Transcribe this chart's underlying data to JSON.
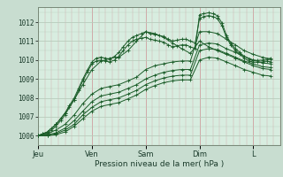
{
  "background_color": "#c8ddd0",
  "plot_bg_color": "#d8ede0",
  "grid_major_color": "#b8ccbc",
  "grid_minor_color": "#ccddcc",
  "grid_vert_color": "#d0a8a8",
  "line_color": "#1a5c28",
  "xlabel": "Pression niveau de la mer( hPa )",
  "xlabels": [
    "Jeu",
    "Ven",
    "Sam",
    "Dim",
    "L"
  ],
  "ylim": [
    1005.5,
    1012.8
  ],
  "yticks": [
    1006,
    1007,
    1008,
    1009,
    1010,
    1011,
    1012
  ],
  "xlim": [
    0,
    4.5
  ],
  "day_ticks": [
    0,
    1,
    2,
    3,
    4
  ],
  "lines": [
    {
      "x": [
        0.0,
        0.08,
        0.17,
        0.25,
        0.33,
        0.42,
        0.5,
        0.58,
        0.67,
        0.75,
        0.83,
        0.92,
        1.0,
        1.08,
        1.17,
        1.25,
        1.33,
        1.42,
        1.5,
        1.58,
        1.67,
        1.75,
        1.83,
        1.92,
        2.0,
        2.08,
        2.17,
        2.25,
        2.33,
        2.42,
        2.5,
        2.58,
        2.67,
        2.75,
        2.83,
        2.92,
        3.0,
        3.08,
        3.17,
        3.25,
        3.33,
        3.42,
        3.5,
        3.58,
        3.67,
        3.75,
        3.83,
        3.92,
        4.0,
        4.08,
        4.17,
        4.25,
        4.33
      ],
      "y": [
        1006.0,
        1006.1,
        1006.2,
        1006.4,
        1006.6,
        1006.9,
        1007.2,
        1007.6,
        1008.0,
        1008.5,
        1009.0,
        1009.5,
        1009.9,
        1010.1,
        1010.15,
        1010.1,
        1010.05,
        1010.2,
        1010.4,
        1010.7,
        1011.0,
        1011.2,
        1011.3,
        1011.4,
        1011.5,
        1011.4,
        1011.35,
        1011.3,
        1011.25,
        1011.1,
        1011.0,
        1011.05,
        1011.1,
        1011.1,
        1011.0,
        1010.9,
        1012.2,
        1012.3,
        1012.35,
        1012.3,
        1012.2,
        1011.8,
        1011.2,
        1010.8,
        1010.5,
        1010.3,
        1010.1,
        1009.95,
        1009.9,
        1009.88,
        1009.9,
        1009.95,
        1009.9
      ]
    },
    {
      "x": [
        0.0,
        0.08,
        0.17,
        0.25,
        0.33,
        0.42,
        0.5,
        0.58,
        0.67,
        0.75,
        0.83,
        0.92,
        1.0,
        1.08,
        1.17,
        1.25,
        1.33,
        1.42,
        1.5,
        1.58,
        1.67,
        1.75,
        1.83,
        1.92,
        2.0,
        2.08,
        2.17,
        2.25,
        2.33,
        2.42,
        2.5,
        2.58,
        2.67,
        2.75,
        2.83,
        2.92,
        3.0,
        3.08,
        3.17,
        3.25,
        3.33,
        3.42,
        3.5,
        3.58,
        3.67,
        3.75,
        3.83,
        3.92,
        4.0,
        4.08,
        4.17,
        4.25,
        4.33
      ],
      "y": [
        1006.0,
        1006.1,
        1006.15,
        1006.3,
        1006.5,
        1006.8,
        1007.1,
        1007.5,
        1007.9,
        1008.4,
        1008.9,
        1009.4,
        1009.8,
        1009.95,
        1010.0,
        1009.95,
        1009.9,
        1010.0,
        1010.2,
        1010.5,
        1010.8,
        1011.0,
        1011.1,
        1011.15,
        1011.2,
        1011.1,
        1011.05,
        1011.0,
        1010.95,
        1010.8,
        1010.7,
        1010.75,
        1010.8,
        1010.8,
        1010.7,
        1010.6,
        1012.4,
        1012.45,
        1012.5,
        1012.45,
        1012.35,
        1011.95,
        1011.3,
        1010.9,
        1010.6,
        1010.4,
        1010.2,
        1010.05,
        1010.0,
        1009.98,
        1010.0,
        1010.05,
        1010.1
      ]
    },
    {
      "x": [
        0.0,
        0.17,
        0.33,
        0.5,
        0.67,
        0.83,
        1.0,
        1.17,
        1.33,
        1.5,
        1.67,
        1.83,
        2.0,
        2.17,
        2.33,
        2.5,
        2.67,
        2.83,
        3.0,
        3.17,
        3.33,
        3.5,
        3.67,
        3.83,
        4.0,
        4.17,
        4.33
      ],
      "y": [
        1006.0,
        1006.1,
        1006.3,
        1006.6,
        1007.1,
        1007.7,
        1008.2,
        1008.5,
        1008.6,
        1008.7,
        1008.9,
        1009.1,
        1009.5,
        1009.7,
        1009.8,
        1009.9,
        1009.95,
        1009.95,
        1011.5,
        1011.5,
        1011.4,
        1011.1,
        1010.8,
        1010.5,
        1010.3,
        1010.15,
        1010.05
      ]
    },
    {
      "x": [
        0.0,
        0.17,
        0.33,
        0.5,
        0.67,
        0.83,
        1.0,
        1.17,
        1.33,
        1.5,
        1.67,
        1.83,
        2.0,
        2.17,
        2.33,
        2.5,
        2.67,
        2.83,
        3.0,
        3.17,
        3.33,
        3.5,
        3.67,
        3.83,
        4.0,
        4.17,
        4.33
      ],
      "y": [
        1006.0,
        1006.05,
        1006.15,
        1006.4,
        1006.8,
        1007.3,
        1007.8,
        1008.1,
        1008.2,
        1008.3,
        1008.5,
        1008.7,
        1009.0,
        1009.2,
        1009.35,
        1009.45,
        1009.5,
        1009.5,
        1010.8,
        1010.9,
        1010.85,
        1010.6,
        1010.4,
        1010.2,
        1010.0,
        1009.85,
        1009.8
      ]
    },
    {
      "x": [
        0.0,
        0.17,
        0.33,
        0.5,
        0.67,
        0.83,
        1.0,
        1.17,
        1.33,
        1.5,
        1.67,
        1.83,
        2.0,
        2.17,
        2.33,
        2.5,
        2.67,
        2.83,
        3.0,
        3.17,
        3.33,
        3.5,
        3.67,
        3.83,
        4.0,
        4.17,
        4.33
      ],
      "y": [
        1006.0,
        1006.0,
        1006.1,
        1006.3,
        1006.6,
        1007.1,
        1007.5,
        1007.8,
        1007.9,
        1008.0,
        1008.2,
        1008.4,
        1008.7,
        1008.9,
        1009.05,
        1009.15,
        1009.2,
        1009.2,
        1010.5,
        1010.6,
        1010.55,
        1010.35,
        1010.15,
        1009.95,
        1009.8,
        1009.65,
        1009.6
      ]
    },
    {
      "x": [
        0.0,
        0.17,
        0.33,
        0.5,
        0.67,
        0.83,
        1.0,
        1.17,
        1.33,
        1.5,
        1.67,
        1.83,
        2.0,
        2.17,
        2.33,
        2.5,
        2.67,
        2.83,
        3.0,
        3.17,
        3.33,
        3.5,
        3.67,
        3.83,
        4.0,
        4.17,
        4.33
      ],
      "y": [
        1006.0,
        1006.0,
        1006.05,
        1006.2,
        1006.5,
        1006.9,
        1007.3,
        1007.55,
        1007.65,
        1007.75,
        1007.95,
        1008.15,
        1008.45,
        1008.65,
        1008.8,
        1008.9,
        1008.95,
        1008.95,
        1010.0,
        1010.15,
        1010.1,
        1009.9,
        1009.7,
        1009.5,
        1009.35,
        1009.2,
        1009.15
      ]
    },
    {
      "x": [
        0.0,
        0.17,
        0.33,
        0.5,
        0.67,
        0.83,
        1.0,
        1.17,
        1.25,
        1.33,
        1.5,
        1.67,
        1.83,
        2.0,
        2.17,
        2.33,
        2.5,
        2.67,
        2.83,
        3.0,
        3.17,
        3.33,
        3.5,
        3.67,
        3.83,
        4.0,
        4.17,
        4.33
      ],
      "y": [
        1006.0,
        1006.2,
        1006.6,
        1007.2,
        1007.9,
        1008.7,
        1009.5,
        1009.95,
        1010.0,
        1010.1,
        1010.15,
        1010.5,
        1011.0,
        1011.5,
        1011.4,
        1011.2,
        1010.9,
        1010.6,
        1010.35,
        1011.0,
        1010.7,
        1010.5,
        1010.3,
        1010.1,
        1009.9,
        1009.7,
        1009.55,
        1009.5
      ]
    }
  ]
}
